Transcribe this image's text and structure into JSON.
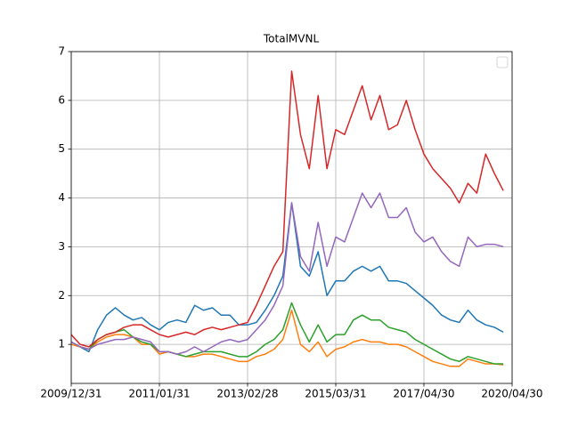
{
  "chart_data": {
    "type": "line",
    "title": "TotalMVNL",
    "x": [
      0,
      2,
      4,
      6,
      8,
      10,
      12,
      14,
      16,
      18,
      20,
      22,
      24,
      26,
      28,
      30,
      32,
      34,
      36,
      38,
      40,
      42,
      44,
      46,
      48,
      50,
      52,
      54,
      56,
      58,
      60,
      62,
      64,
      66,
      68,
      70,
      72,
      74,
      76,
      78,
      80,
      82,
      84,
      86,
      88,
      90,
      92,
      94,
      96,
      98
    ],
    "xlim": [
      0,
      100
    ],
    "xticks": [
      {
        "value": 0,
        "label": "2009/12/31"
      },
      {
        "value": 20,
        "label": "2011/01/31"
      },
      {
        "value": 40,
        "label": "2013/02/28"
      },
      {
        "value": 60,
        "label": "2015/03/31"
      },
      {
        "value": 80,
        "label": "2017/04/30"
      },
      {
        "value": 100,
        "label": "2020/04/30"
      }
    ],
    "ylim": [
      0.2,
      7
    ],
    "yticks": [
      1,
      2,
      3,
      4,
      5,
      6,
      7
    ],
    "grid": true,
    "legend": "upper right",
    "series": [
      {
        "color": "#1f77b4",
        "values": [
          1.05,
          0.95,
          0.85,
          1.3,
          1.6,
          1.75,
          1.6,
          1.5,
          1.55,
          1.4,
          1.3,
          1.45,
          1.5,
          1.45,
          1.8,
          1.7,
          1.75,
          1.6,
          1.6,
          1.4,
          1.4,
          1.45,
          1.7,
          2.0,
          2.4,
          3.9,
          2.6,
          2.4,
          2.9,
          2.0,
          2.3,
          2.3,
          2.5,
          2.6,
          2.5,
          2.6,
          2.3,
          2.3,
          2.25,
          2.1,
          1.95,
          1.8,
          1.6,
          1.5,
          1.45,
          1.7,
          1.5,
          1.4,
          1.35,
          1.25
        ]
      },
      {
        "color": "#ff7f0e",
        "values": [
          1.0,
          0.95,
          0.9,
          1.05,
          1.15,
          1.2,
          1.2,
          1.15,
          1.0,
          1.0,
          0.8,
          0.85,
          0.8,
          0.75,
          0.75,
          0.8,
          0.8,
          0.75,
          0.7,
          0.65,
          0.65,
          0.75,
          0.8,
          0.9,
          1.1,
          1.7,
          1.0,
          0.85,
          1.05,
          0.75,
          0.9,
          0.95,
          1.05,
          1.1,
          1.05,
          1.05,
          1.0,
          1.0,
          0.95,
          0.85,
          0.75,
          0.65,
          0.6,
          0.55,
          0.55,
          0.7,
          0.65,
          0.6,
          0.6,
          0.58
        ]
      },
      {
        "color": "#2ca02c",
        "values": [
          1.05,
          0.95,
          0.9,
          1.1,
          1.2,
          1.25,
          1.3,
          1.15,
          1.05,
          1.0,
          0.85,
          0.85,
          0.8,
          0.75,
          0.8,
          0.85,
          0.85,
          0.85,
          0.8,
          0.75,
          0.75,
          0.85,
          1.0,
          1.1,
          1.3,
          1.85,
          1.4,
          1.05,
          1.4,
          1.05,
          1.2,
          1.2,
          1.5,
          1.6,
          1.5,
          1.5,
          1.35,
          1.3,
          1.25,
          1.1,
          1.0,
          0.9,
          0.8,
          0.7,
          0.65,
          0.75,
          0.7,
          0.65,
          0.6,
          0.6
        ]
      },
      {
        "color": "#d62728",
        "values": [
          1.2,
          1.0,
          0.95,
          1.1,
          1.2,
          1.25,
          1.35,
          1.4,
          1.4,
          1.3,
          1.2,
          1.15,
          1.2,
          1.25,
          1.2,
          1.3,
          1.35,
          1.3,
          1.35,
          1.4,
          1.45,
          1.8,
          2.2,
          2.6,
          2.9,
          6.6,
          5.3,
          4.6,
          6.1,
          4.6,
          5.4,
          5.3,
          5.8,
          6.3,
          5.6,
          6.1,
          5.4,
          5.5,
          6.0,
          5.4,
          4.9,
          4.6,
          4.4,
          4.2,
          3.9,
          4.3,
          4.1,
          4.9,
          4.5,
          4.15
        ]
      },
      {
        "color": "#9467bd",
        "values": [
          1.05,
          0.95,
          0.9,
          1.0,
          1.05,
          1.1,
          1.1,
          1.15,
          1.1,
          1.05,
          0.85,
          0.85,
          0.8,
          0.85,
          0.95,
          0.85,
          0.95,
          1.05,
          1.1,
          1.05,
          1.1,
          1.3,
          1.5,
          1.8,
          2.2,
          3.9,
          2.8,
          2.5,
          3.5,
          2.6,
          3.2,
          3.1,
          3.6,
          4.1,
          3.8,
          4.1,
          3.6,
          3.6,
          3.8,
          3.3,
          3.1,
          3.2,
          2.9,
          2.7,
          2.6,
          3.2,
          3.0,
          3.05,
          3.05,
          3.0
        ]
      }
    ]
  }
}
